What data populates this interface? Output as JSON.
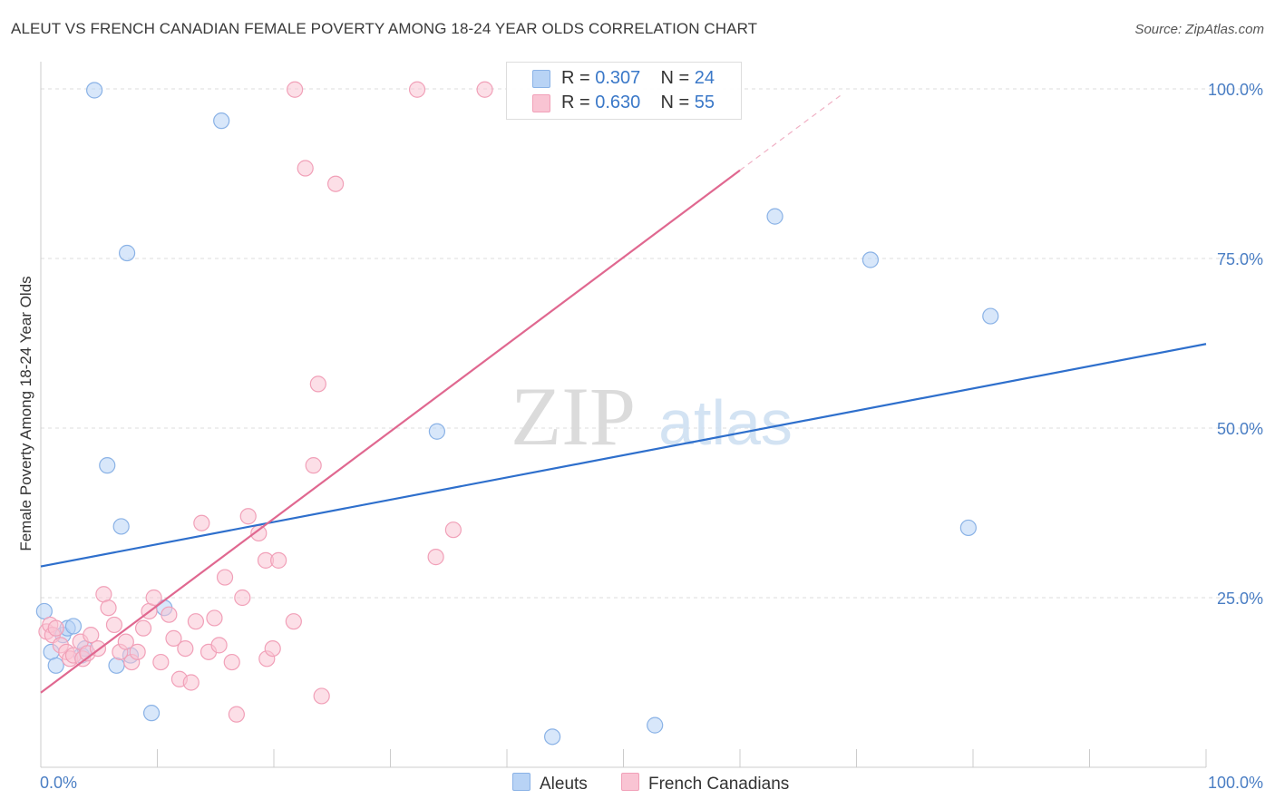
{
  "header": {
    "title": "ALEUT VS FRENCH CANADIAN FEMALE POVERTY AMONG 18-24 YEAR OLDS CORRELATION CHART",
    "source": "Source: ZipAtlas.com"
  },
  "watermark": {
    "part1": "ZIP",
    "part2": "atlas"
  },
  "legend": {
    "rows": [
      {
        "r_label": "R = ",
        "r_value": "0.307",
        "n_label": "N = ",
        "n_value": "24"
      },
      {
        "r_label": "R = ",
        "r_value": "0.630",
        "n_label": "N = ",
        "n_value": "55"
      }
    ]
  },
  "bottom_legend": {
    "aleuts": "Aleuts",
    "french": "French Canadians"
  },
  "colors": {
    "aleuts_fill": "#b8d3f5",
    "aleuts_stroke": "#8ab2e6",
    "aleuts_line": "#2e6fcc",
    "french_fill": "#f9c4d3",
    "french_stroke": "#f1a0b8",
    "french_line": "#e06890",
    "grid": "#dddddd",
    "tick_label": "#4a7ec4"
  },
  "chart_data": {
    "type": "scatter",
    "title": "ALEUT VS FRENCH CANADIAN FEMALE POVERTY AMONG 18-24 YEAR OLDS CORRELATION CHART",
    "xlabel": "",
    "ylabel": "Female Poverty Among 18-24 Year Olds",
    "xlim": [
      0,
      100
    ],
    "ylim": [
      0,
      100
    ],
    "x_tick_labels": [
      {
        "value": 0,
        "label": "0.0%"
      },
      {
        "value": 100,
        "label": "100.0%"
      }
    ],
    "y_tick_labels": [
      {
        "value": 25,
        "label": "25.0%"
      },
      {
        "value": 50,
        "label": "50.0%"
      },
      {
        "value": 75,
        "label": "75.0%"
      },
      {
        "value": 100,
        "label": "100.0%"
      }
    ],
    "grid": "horizontal dashed",
    "legend_position": "top-center",
    "series": [
      {
        "name": "Aleuts",
        "R": 0.307,
        "N": 24,
        "trend": {
          "x": [
            0,
            100
          ],
          "y": [
            29.6,
            62.4
          ]
        },
        "points": [
          {
            "x": 0.3,
            "y": 23.0
          },
          {
            "x": 0.9,
            "y": 17.0
          },
          {
            "x": 1.3,
            "y": 15.0
          },
          {
            "x": 1.9,
            "y": 19.5
          },
          {
            "x": 2.3,
            "y": 20.5
          },
          {
            "x": 2.8,
            "y": 20.8
          },
          {
            "x": 3.5,
            "y": 16.5
          },
          {
            "x": 3.8,
            "y": 17.5
          },
          {
            "x": 4.6,
            "y": 99.8
          },
          {
            "x": 5.7,
            "y": 44.5
          },
          {
            "x": 6.5,
            "y": 15.0
          },
          {
            "x": 6.9,
            "y": 35.5
          },
          {
            "x": 7.4,
            "y": 75.8
          },
          {
            "x": 7.7,
            "y": 16.5
          },
          {
            "x": 9.5,
            "y": 8.0
          },
          {
            "x": 10.6,
            "y": 23.5
          },
          {
            "x": 15.5,
            "y": 95.3
          },
          {
            "x": 34.0,
            "y": 49.5
          },
          {
            "x": 43.9,
            "y": 4.5
          },
          {
            "x": 52.7,
            "y": 6.2
          },
          {
            "x": 63.0,
            "y": 81.2
          },
          {
            "x": 71.2,
            "y": 74.8
          },
          {
            "x": 81.5,
            "y": 66.5
          },
          {
            "x": 79.6,
            "y": 35.3
          }
        ]
      },
      {
        "name": "French Canadians",
        "R": 0.63,
        "N": 55,
        "trend": {
          "x": [
            0,
            60
          ],
          "y": [
            11.0,
            88.0
          ]
        },
        "trend_dashed": {
          "x": [
            60,
            68.6
          ],
          "y": [
            88.0,
            99.0
          ]
        },
        "points": [
          {
            "x": 0.5,
            "y": 20.0
          },
          {
            "x": 0.8,
            "y": 21.0
          },
          {
            "x": 1.0,
            "y": 19.5
          },
          {
            "x": 1.3,
            "y": 20.5
          },
          {
            "x": 1.7,
            "y": 18.0
          },
          {
            "x": 2.2,
            "y": 17.0
          },
          {
            "x": 2.5,
            "y": 16.0
          },
          {
            "x": 2.8,
            "y": 16.5
          },
          {
            "x": 3.4,
            "y": 18.5
          },
          {
            "x": 3.6,
            "y": 16.0
          },
          {
            "x": 4.0,
            "y": 16.8
          },
          {
            "x": 4.3,
            "y": 19.5
          },
          {
            "x": 4.9,
            "y": 17.5
          },
          {
            "x": 5.4,
            "y": 25.5
          },
          {
            "x": 5.8,
            "y": 23.5
          },
          {
            "x": 6.3,
            "y": 21.0
          },
          {
            "x": 6.8,
            "y": 17.0
          },
          {
            "x": 7.3,
            "y": 18.5
          },
          {
            "x": 7.8,
            "y": 15.5
          },
          {
            "x": 8.3,
            "y": 17.0
          },
          {
            "x": 8.8,
            "y": 20.5
          },
          {
            "x": 9.3,
            "y": 23.0
          },
          {
            "x": 9.7,
            "y": 25.0
          },
          {
            "x": 10.3,
            "y": 15.5
          },
          {
            "x": 11.0,
            "y": 22.5
          },
          {
            "x": 11.4,
            "y": 19.0
          },
          {
            "x": 11.9,
            "y": 13.0
          },
          {
            "x": 12.4,
            "y": 17.5
          },
          {
            "x": 12.9,
            "y": 12.5
          },
          {
            "x": 13.3,
            "y": 21.5
          },
          {
            "x": 13.8,
            "y": 36.0
          },
          {
            "x": 14.4,
            "y": 17.0
          },
          {
            "x": 14.9,
            "y": 22.0
          },
          {
            "x": 15.3,
            "y": 18.0
          },
          {
            "x": 15.8,
            "y": 28.0
          },
          {
            "x": 16.4,
            "y": 15.5
          },
          {
            "x": 16.8,
            "y": 7.8
          },
          {
            "x": 17.3,
            "y": 25.0
          },
          {
            "x": 17.8,
            "y": 37.0
          },
          {
            "x": 18.7,
            "y": 34.5
          },
          {
            "x": 19.4,
            "y": 16.0
          },
          {
            "x": 19.3,
            "y": 30.5
          },
          {
            "x": 19.9,
            "y": 17.5
          },
          {
            "x": 20.4,
            "y": 30.5
          },
          {
            "x": 21.7,
            "y": 21.5
          },
          {
            "x": 23.4,
            "y": 44.5
          },
          {
            "x": 23.8,
            "y": 56.5
          },
          {
            "x": 24.1,
            "y": 10.5
          },
          {
            "x": 21.8,
            "y": 99.9
          },
          {
            "x": 22.7,
            "y": 88.3
          },
          {
            "x": 25.3,
            "y": 86.0
          },
          {
            "x": 32.3,
            "y": 99.9
          },
          {
            "x": 33.9,
            "y": 31.0
          },
          {
            "x": 35.4,
            "y": 35.0
          },
          {
            "x": 38.1,
            "y": 99.9
          }
        ]
      }
    ]
  }
}
